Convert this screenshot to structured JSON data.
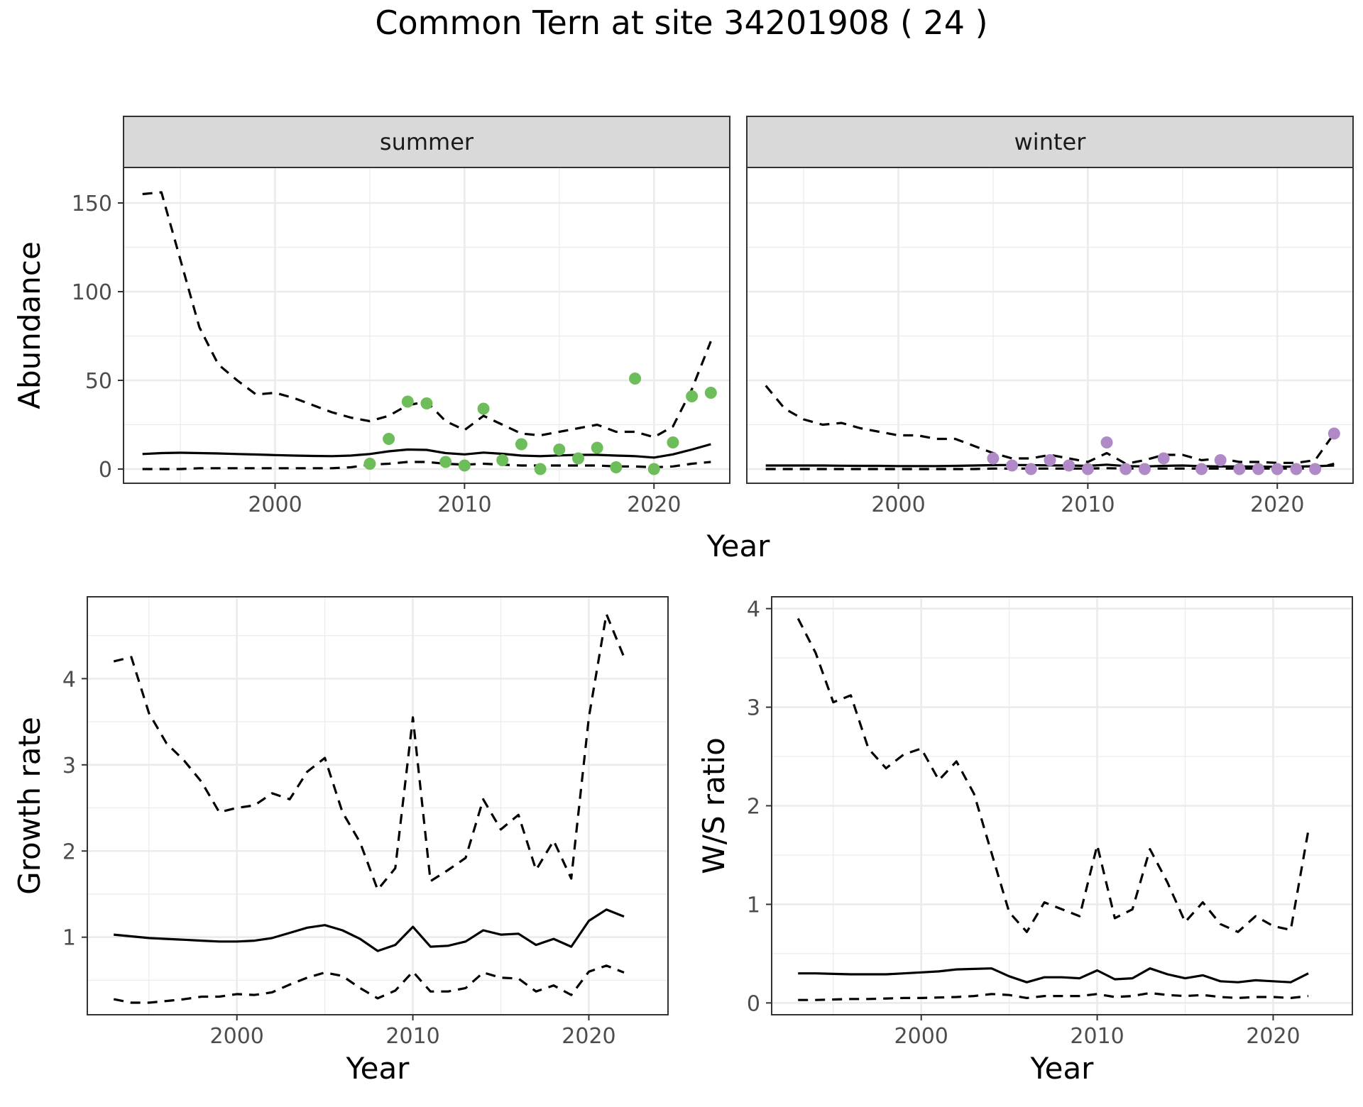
{
  "title": "Common Tern at site 34201908 ( 24 )",
  "colors": {
    "summer_points": "#6dbd5a",
    "winter_points": "#b08ac6",
    "line": "#000000",
    "grid": "#ebebeb",
    "strip_bg": "#d9d9d9",
    "panel_border": "#333333"
  },
  "chart_data": [
    {
      "type": "line",
      "panel": "summer",
      "strip_label": "summer",
      "xlabel": "Year",
      "ylabel": "Abundance",
      "xlim": [
        1992,
        2024
      ],
      "ylim": [
        -8,
        170
      ],
      "xticks": [
        2000,
        2010,
        2020
      ],
      "yticks": [
        0,
        50,
        100,
        150
      ],
      "x": [
        1993,
        1994,
        1995,
        1996,
        1997,
        1998,
        1999,
        2000,
        2001,
        2002,
        2003,
        2004,
        2005,
        2006,
        2007,
        2008,
        2009,
        2010,
        2011,
        2012,
        2013,
        2014,
        2015,
        2016,
        2017,
        2018,
        2019,
        2020,
        2021,
        2022,
        2023
      ],
      "series": [
        {
          "role": "mean",
          "style": "solid",
          "values": [
            8.5,
            9,
            9.2,
            9,
            8.8,
            8.5,
            8.2,
            7.9,
            7.6,
            7.4,
            7.3,
            7.6,
            8.5,
            10,
            11,
            10.8,
            9,
            8.3,
            9.3,
            8.6,
            7.6,
            7.3,
            7.7,
            8,
            8,
            7.6,
            7.3,
            6.5,
            8.3,
            11,
            14
          ]
        },
        {
          "role": "upper",
          "style": "dashed",
          "values": [
            155,
            156,
            118,
            80,
            59,
            50,
            42,
            43,
            40,
            36,
            32,
            29,
            27,
            30,
            36,
            38,
            27,
            22,
            30,
            25,
            20,
            19,
            21,
            23,
            25,
            21,
            21,
            18,
            24,
            45,
            72
          ]
        },
        {
          "role": "lower",
          "style": "dashed",
          "values": [
            0,
            0,
            0,
            0.5,
            0.5,
            0.5,
            0.5,
            0.5,
            0.5,
            0.5,
            0.5,
            1,
            2.5,
            3,
            4,
            4,
            3,
            2.5,
            3,
            2.5,
            2,
            2,
            2,
            2,
            2,
            1.5,
            1.5,
            1,
            1.5,
            3,
            4
          ]
        }
      ],
      "points": {
        "color": "#6dbd5a",
        "x": [
          2005,
          2006,
          2007,
          2008,
          2009,
          2010,
          2011,
          2012,
          2013,
          2014,
          2015,
          2016,
          2017,
          2018,
          2019,
          2020,
          2021,
          2022,
          2023
        ],
        "y": [
          3,
          17,
          38,
          37,
          4,
          2,
          34,
          5,
          14,
          0,
          11,
          6,
          12,
          1,
          51,
          0,
          15,
          41,
          43
        ]
      }
    },
    {
      "type": "line",
      "panel": "winter",
      "strip_label": "winter",
      "xlabel": "Year",
      "ylabel": "",
      "xlim": [
        1992,
        2024
      ],
      "ylim": [
        -8,
        170
      ],
      "xticks": [
        2000,
        2010,
        2020
      ],
      "yticks": [],
      "x": [
        1993,
        1994,
        1995,
        1996,
        1997,
        1998,
        1999,
        2000,
        2001,
        2002,
        2003,
        2004,
        2005,
        2006,
        2007,
        2008,
        2009,
        2010,
        2011,
        2012,
        2013,
        2014,
        2015,
        2016,
        2017,
        2018,
        2019,
        2020,
        2021,
        2022,
        2023
      ],
      "series": [
        {
          "role": "mean",
          "style": "solid",
          "values": [
            2,
            2,
            2,
            2,
            1.9,
            1.8,
            1.8,
            1.7,
            1.7,
            1.7,
            1.8,
            2,
            2.2,
            2.3,
            2.2,
            2.1,
            2,
            1.8,
            2.5,
            1.7,
            1.5,
            1.8,
            2,
            1.6,
            1.5,
            1.5,
            1.4,
            1.3,
            1.4,
            1.6,
            2
          ]
        },
        {
          "role": "upper",
          "style": "dashed",
          "values": [
            47,
            34,
            28,
            25,
            26,
            23,
            21,
            19,
            19,
            17,
            17,
            13,
            9,
            6,
            6,
            8,
            6,
            4,
            9,
            3,
            5,
            8,
            8,
            5,
            6,
            4,
            4,
            3.5,
            3.5,
            5,
            20
          ]
        },
        {
          "role": "lower",
          "style": "dashed",
          "values": [
            0,
            0,
            0,
            0,
            0,
            0,
            0,
            0,
            0,
            0,
            0,
            0,
            0.3,
            0.3,
            0.3,
            0.3,
            0.3,
            0.3,
            0.5,
            0.3,
            0.3,
            0.3,
            0.3,
            0.3,
            0.3,
            0.3,
            0.3,
            0.3,
            0.3,
            0.3,
            3
          ]
        }
      ],
      "points": {
        "color": "#b08ac6",
        "x": [
          2005,
          2006,
          2007,
          2008,
          2009,
          2010,
          2011,
          2012,
          2013,
          2014,
          2016,
          2017,
          2018,
          2019,
          2020,
          2021,
          2022,
          2023
        ],
        "y": [
          6,
          2,
          0,
          5,
          2,
          0,
          15,
          0,
          0,
          6,
          0,
          5,
          0,
          0,
          0,
          0,
          0,
          20
        ]
      }
    },
    {
      "type": "line",
      "panel": "growth",
      "xlabel": "Year",
      "ylabel": "Growth rate",
      "xlim": [
        1991.5,
        2024.5
      ],
      "ylim": [
        0.1,
        4.95
      ],
      "xticks": [
        2000,
        2010,
        2020
      ],
      "yticks": [
        1,
        2,
        3,
        4
      ],
      "x": [
        1993,
        1994,
        1995,
        1996,
        1997,
        1998,
        1999,
        2000,
        2001,
        2002,
        2003,
        2004,
        2005,
        2006,
        2007,
        2008,
        2009,
        2010,
        2011,
        2012,
        2013,
        2014,
        2015,
        2016,
        2017,
        2018,
        2019,
        2020,
        2021,
        2022
      ],
      "series": [
        {
          "role": "mean",
          "style": "solid",
          "values": [
            1.03,
            1.01,
            0.99,
            0.98,
            0.97,
            0.96,
            0.95,
            0.95,
            0.96,
            0.99,
            1.05,
            1.11,
            1.14,
            1.08,
            0.98,
            0.84,
            0.91,
            1.12,
            0.89,
            0.9,
            0.95,
            1.08,
            1.03,
            1.04,
            0.91,
            0.98,
            0.89,
            1.19,
            1.32,
            1.24
          ]
        },
        {
          "role": "upper",
          "style": "dashed",
          "values": [
            4.2,
            4.25,
            3.6,
            3.25,
            3.05,
            2.8,
            2.45,
            2.5,
            2.53,
            2.67,
            2.6,
            2.92,
            3.08,
            2.45,
            2.1,
            1.55,
            1.8,
            3.55,
            1.65,
            1.78,
            1.92,
            2.6,
            2.25,
            2.42,
            1.78,
            2.12,
            1.68,
            3.55,
            4.75,
            4.25
          ]
        },
        {
          "role": "lower",
          "style": "dashed",
          "values": [
            0.28,
            0.24,
            0.24,
            0.26,
            0.28,
            0.31,
            0.31,
            0.34,
            0.33,
            0.36,
            0.45,
            0.53,
            0.59,
            0.55,
            0.41,
            0.29,
            0.38,
            0.6,
            0.37,
            0.37,
            0.41,
            0.59,
            0.53,
            0.52,
            0.37,
            0.44,
            0.33,
            0.6,
            0.67,
            0.59
          ]
        }
      ]
    },
    {
      "type": "line",
      "panel": "ws_ratio",
      "xlabel": "Year",
      "ylabel": "W/S ratio",
      "xlim": [
        1991.5,
        2024.5
      ],
      "ylim": [
        -0.12,
        4.12
      ],
      "xticks": [
        2000,
        2010,
        2020
      ],
      "yticks": [
        0,
        1,
        2,
        3,
        4
      ],
      "x": [
        1993,
        1994,
        1995,
        1996,
        1997,
        1998,
        1999,
        2000,
        2001,
        2002,
        2003,
        2004,
        2005,
        2006,
        2007,
        2008,
        2009,
        2010,
        2011,
        2012,
        2013,
        2014,
        2015,
        2016,
        2017,
        2018,
        2019,
        2020,
        2021,
        2022
      ],
      "series": [
        {
          "role": "mean",
          "style": "solid",
          "values": [
            0.3,
            0.3,
            0.295,
            0.29,
            0.29,
            0.29,
            0.3,
            0.31,
            0.32,
            0.34,
            0.345,
            0.35,
            0.27,
            0.21,
            0.26,
            0.26,
            0.25,
            0.33,
            0.24,
            0.25,
            0.35,
            0.29,
            0.25,
            0.28,
            0.22,
            0.21,
            0.23,
            0.22,
            0.21,
            0.3
          ]
        },
        {
          "role": "upper",
          "style": "dashed",
          "values": [
            3.9,
            3.55,
            3.05,
            3.12,
            2.58,
            2.38,
            2.52,
            2.58,
            2.26,
            2.45,
            2.12,
            1.52,
            0.92,
            0.72,
            1.02,
            0.95,
            0.88,
            1.6,
            0.86,
            0.95,
            1.56,
            1.22,
            0.82,
            1.02,
            0.8,
            0.72,
            0.88,
            0.78,
            0.74,
            1.75
          ]
        },
        {
          "role": "lower",
          "style": "dashed",
          "values": [
            0.03,
            0.03,
            0.035,
            0.04,
            0.04,
            0.045,
            0.05,
            0.05,
            0.055,
            0.06,
            0.07,
            0.09,
            0.08,
            0.05,
            0.07,
            0.07,
            0.07,
            0.09,
            0.06,
            0.07,
            0.1,
            0.08,
            0.07,
            0.08,
            0.06,
            0.05,
            0.06,
            0.06,
            0.05,
            0.07
          ]
        }
      ]
    }
  ]
}
